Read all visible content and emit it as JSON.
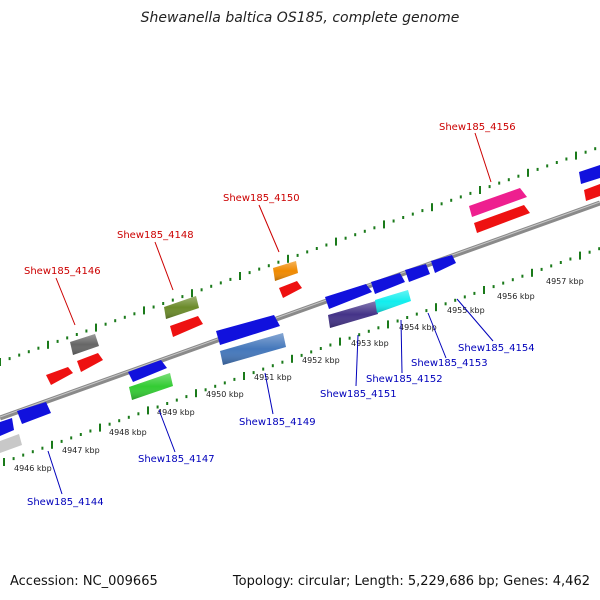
{
  "title": "Shewanella baltica OS185, complete genome",
  "footer": {
    "accession": "Accession: NC_009665",
    "summary": "Topology: circular; Length: 5,229,686 bp; Genes: 4,462"
  },
  "colors": {
    "forward_label": "#cc0000",
    "reverse_label": "#0000bb",
    "track": "#8a8a8a",
    "tick": "#1a7a1a"
  },
  "scale": {
    "labels": [
      "4946 kbp",
      "4947 kbp",
      "4948 kbp",
      "4949 kbp",
      "4950 kbp",
      "4951 kbp",
      "4952 kbp",
      "4953 kbp",
      "4954 kbp",
      "4955 kbp",
      "4956 kbp",
      "4957 kbp"
    ]
  },
  "genes": {
    "forward_labels": [
      "Shew185_4146",
      "Shew185_4148",
      "Shew185_4150",
      "Shew185_4156"
    ],
    "reverse_labels": [
      "Shew185_4144",
      "Shew185_4147",
      "Shew185_4149",
      "Shew185_4151",
      "Shew185_4152",
      "Shew185_4153",
      "Shew185_4154"
    ]
  }
}
